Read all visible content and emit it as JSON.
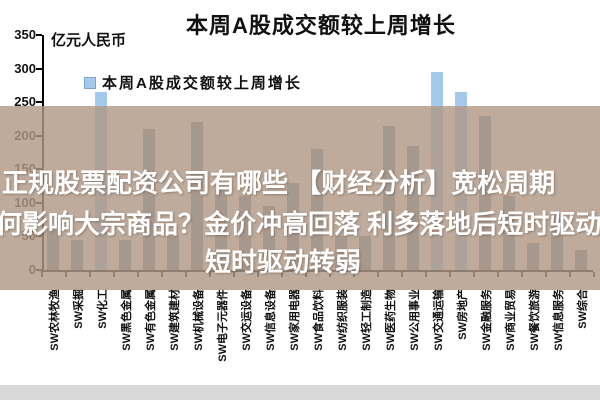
{
  "chart_data": {
    "type": "bar",
    "title": "本周A股成交额较上周增长",
    "unit_label": "亿元人民币",
    "legend": {
      "label": "本周A股成交额较上周增长",
      "position": "top-left"
    },
    "categories": [
      "SW农林牧渔",
      "SW采掘",
      "SW化工",
      "SW黑色金属",
      "SW有色金属",
      "SW建筑建材",
      "SW机械设备",
      "SW电子元器件",
      "SW交运设备",
      "SW信息设备",
      "SW家用电器",
      "SW食品饮料",
      "SW纺织服装",
      "SW轻工制造",
      "SW医药生物",
      "SW公用事业",
      "SW交通运输",
      "SW房地产",
      "SW金融服务",
      "SW商业贸易",
      "SW餐饮旅游",
      "SW信息服务",
      "SW综合"
    ],
    "values": [
      60,
      45,
      265,
      45,
      210,
      50,
      220,
      120,
      110,
      95,
      130,
      180,
      50,
      50,
      215,
      185,
      295,
      265,
      230,
      110,
      40,
      85,
      30
    ],
    "highlighted_indices": [
      2,
      16,
      17
    ],
    "bar_color": "#8095b1",
    "highlight_color": "#a5c9ec",
    "ylim": [
      0,
      350
    ],
    "yticks": [
      350,
      300,
      250,
      200,
      150,
      100,
      50,
      0
    ],
    "grid": false
  },
  "overlay": {
    "lines": [
      "正规股票配资公司有哪些 【财经分析】宽松周期",
      "何影响大宗商品？金价冲高回落 利多落地后短时驱动",
      "短时驱动转弱"
    ],
    "band_color": "rgba(176,152,134,0.82)",
    "text_color": "#ffffff"
  },
  "footer": {
    "strip_color": "#d9d9d9"
  }
}
